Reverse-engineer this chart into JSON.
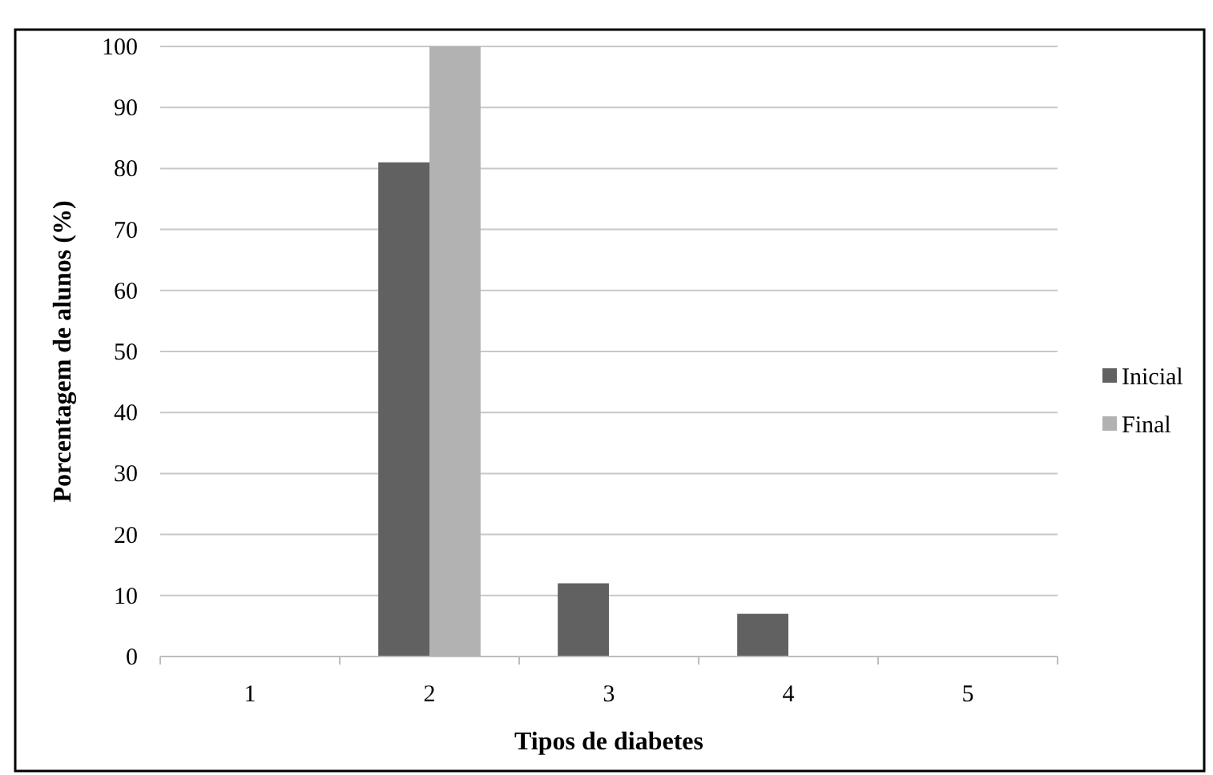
{
  "chart_data": {
    "type": "bar",
    "xlabel": "Tipos de diabetes",
    "ylabel": "Porcentagem de alunos (%)",
    "categories": [
      "1",
      "2",
      "3",
      "4",
      "5"
    ],
    "series": [
      {
        "name": "Inicial",
        "color": "#616161",
        "values": [
          0,
          81,
          12,
          7,
          0
        ]
      },
      {
        "name": "Final",
        "color": "#b2b2b2",
        "values": [
          0,
          100,
          0,
          0,
          0
        ]
      }
    ],
    "ylim": [
      0,
      100
    ],
    "yticks": [
      0,
      10,
      20,
      30,
      40,
      50,
      60,
      70,
      80,
      90,
      100
    ],
    "grid": "y",
    "legend": "right"
  }
}
